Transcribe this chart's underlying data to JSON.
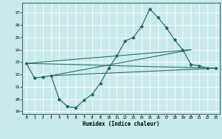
{
  "bg_color": "#c8eaea",
  "line_color": "#1a6b6b",
  "grid_color": "#ffffff",
  "xlabel": "Humidex (Indice chaleur)",
  "ylim": [
    18.8,
    27.8
  ],
  "xlim": [
    -0.5,
    23.5
  ],
  "yticks": [
    19,
    20,
    21,
    22,
    23,
    24,
    25,
    26,
    27
  ],
  "xticks": [
    0,
    1,
    2,
    3,
    4,
    5,
    6,
    7,
    8,
    9,
    10,
    11,
    12,
    13,
    14,
    15,
    16,
    17,
    18,
    19,
    20,
    21,
    22,
    23
  ],
  "main_x": [
    0,
    1,
    2,
    3,
    4,
    5,
    6,
    7,
    8,
    9,
    10,
    11,
    12,
    13,
    14,
    15,
    16,
    17,
    18,
    19,
    20,
    21,
    22,
    23
  ],
  "main_y": [
    22.9,
    21.7,
    21.8,
    21.9,
    20.0,
    19.4,
    19.3,
    19.9,
    20.4,
    21.3,
    22.5,
    23.5,
    24.7,
    25.0,
    25.9,
    27.3,
    26.6,
    25.8,
    24.8,
    24.0,
    22.8,
    22.7,
    22.5,
    22.5
  ],
  "line2_x": [
    0,
    23
  ],
  "line2_y": [
    22.9,
    22.5
  ],
  "line3_x": [
    0,
    20
  ],
  "line3_y": [
    22.9,
    24.0
  ],
  "line4_x": [
    3,
    23
  ],
  "line4_y": [
    21.9,
    22.5
  ],
  "line5_x": [
    3,
    20
  ],
  "line5_y": [
    21.9,
    24.0
  ]
}
